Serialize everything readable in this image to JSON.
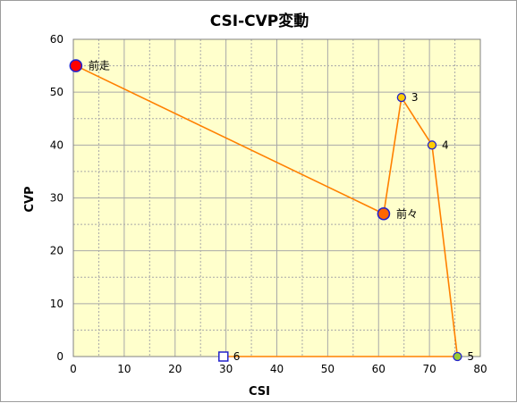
{
  "chart_data": {
    "type": "scatter",
    "title": "CSI-CVP変動",
    "xlabel": "CSI",
    "ylabel": "CVP",
    "xlim": [
      0,
      80
    ],
    "ylim": [
      0,
      60
    ],
    "xticks": [
      "0",
      "10",
      "20",
      "30",
      "40",
      "50",
      "60",
      "70",
      "80"
    ],
    "yticks": [
      "0",
      "10",
      "20",
      "30",
      "40",
      "50",
      "60"
    ],
    "grid": true,
    "colors": {
      "plot_background": "#ffffcc",
      "grid": "#a8a8a8",
      "line": "#ff8000",
      "marker_outline": "#2222cc"
    },
    "points": [
      {
        "label": "前走",
        "x": 0.5,
        "y": 55,
        "fill": "#ff0000",
        "marker": "large-circle"
      },
      {
        "label": "前々",
        "x": 61,
        "y": 27,
        "fill": "#ff6600",
        "marker": "large-circle"
      },
      {
        "label": "3",
        "x": 64.5,
        "y": 49,
        "fill": "#ffcc00",
        "marker": "small-circle"
      },
      {
        "label": "4",
        "x": 70.5,
        "y": 40,
        "fill": "#ffcc00",
        "marker": "small-circle"
      },
      {
        "label": "5",
        "x": 75.5,
        "y": 0,
        "fill": "#99cc33",
        "marker": "small-circle"
      },
      {
        "label": "6",
        "x": 29.5,
        "y": 0,
        "fill": "#ffffff",
        "marker": "square"
      }
    ]
  }
}
